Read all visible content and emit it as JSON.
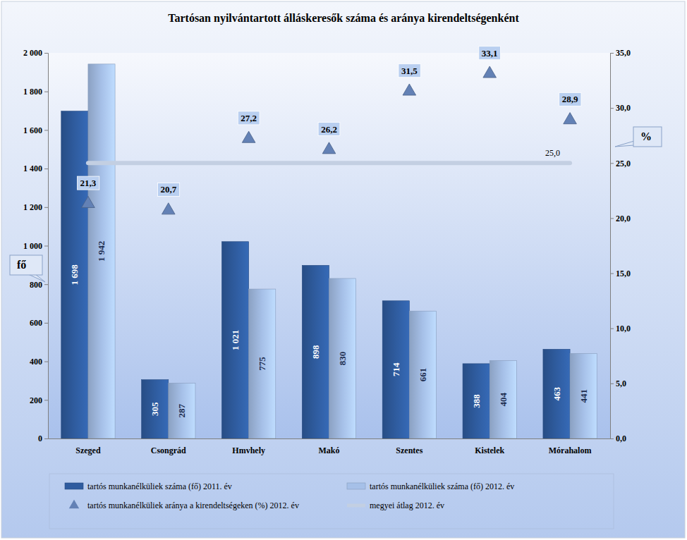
{
  "chart_data": {
    "type": "bar",
    "title": "Tartósan nyilvántartott álláskeresők száma és aránya kirendeltségenként",
    "categories": [
      "Szeged",
      "Csongrád",
      "Hmvhely",
      "Makó",
      "Szentes",
      "Kistelek",
      "Mórahalom"
    ],
    "y_label": "fő",
    "y2_label": "%",
    "ylim": [
      0,
      2000
    ],
    "yticks": [
      0,
      200,
      400,
      600,
      800,
      {
        "value": 1000,
        "label": "1 000"
      },
      {
        "value": 1200,
        "label": "1 200"
      },
      {
        "value": 1400,
        "label": "1 400"
      },
      {
        "value": 1600,
        "label": "1 600"
      },
      {
        "value": 1800,
        "label": "1 800"
      },
      {
        "value": 2000,
        "label": "2 000"
      }
    ],
    "y2lim": [
      0,
      35
    ],
    "y2ticks": [
      {
        "value": 0,
        "label": "0,0"
      },
      {
        "value": 5,
        "label": "5,0"
      },
      {
        "value": 10,
        "label": "10,0"
      },
      {
        "value": 15,
        "label": "15,0"
      },
      {
        "value": 20,
        "label": "20,0"
      },
      {
        "value": 25,
        "label": "25,0"
      },
      {
        "value": 30,
        "label": "30,0"
      },
      {
        "value": 35,
        "label": "35,0"
      }
    ],
    "grid": false,
    "legend": "bottom",
    "data_labels": true,
    "series": [
      {
        "name": "tartós munkanélküliek száma (fő) 2011. év",
        "type": "bar",
        "color": "#2f5c9f",
        "values": [
          1698,
          305,
          1021,
          898,
          714,
          388,
          463
        ],
        "value_labels": [
          "1 698",
          "305",
          "1 021",
          "898",
          "714",
          "388",
          "463"
        ]
      },
      {
        "name": "tartós munkanélküliek száma (fő) 2012. év",
        "type": "bar",
        "color": "#a6c0e8",
        "values": [
          1942,
          287,
          775,
          830,
          661,
          404,
          441
        ],
        "value_labels": [
          "1 942",
          "287",
          "775",
          "830",
          "661",
          "404",
          "441"
        ]
      },
      {
        "name": "tartós munkanélküliek aránya a kirendeltségeken (%) 2012. év",
        "type": "scatter",
        "marker": "triangle",
        "axis": "y2",
        "color": "#6381b5",
        "values": [
          21.3,
          20.7,
          27.2,
          26.2,
          31.5,
          33.1,
          28.9
        ],
        "value_labels": [
          "21,3",
          "20,7",
          "27,2",
          "26,2",
          "31,5",
          "33,1",
          "28,9"
        ]
      },
      {
        "name": "megyei átlag 2012. év",
        "type": "line",
        "axis": "y2",
        "color": "#c3cfe2",
        "values": [
          25.0,
          25.0,
          25.0,
          25.0,
          25.0,
          25.0,
          25.0
        ],
        "value_labels": [
          null,
          null,
          null,
          null,
          null,
          null,
          "25,0"
        ]
      }
    ]
  }
}
